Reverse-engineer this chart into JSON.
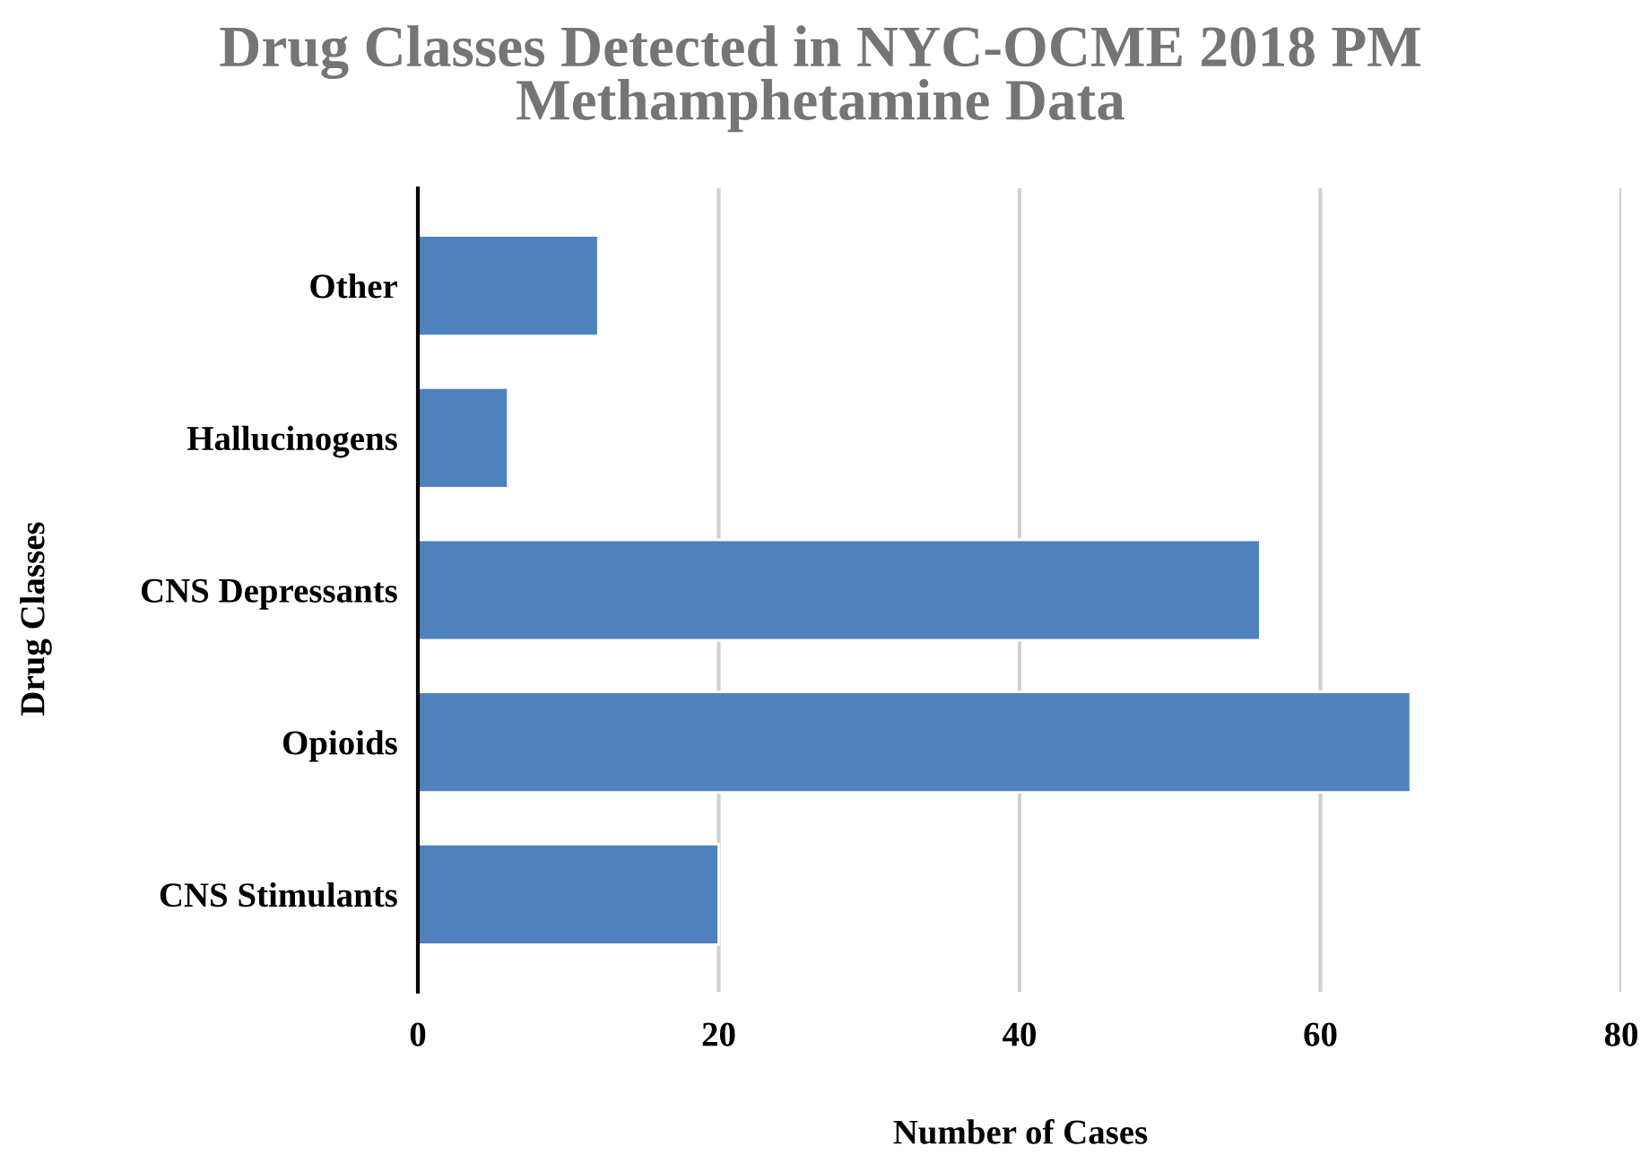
{
  "chart_data": {
    "type": "bar",
    "orientation": "horizontal",
    "title": "Drug Classes Detected in NYC-OCME 2018 PM\nMethamphetamine Data",
    "xlabel": "Number of Cases",
    "ylabel": "Drug Classes",
    "categories": [
      "Other",
      "Hallucinogens",
      "CNS Depressants",
      "Opioids",
      "CNS Stimulants"
    ],
    "values": [
      12,
      6,
      56,
      66,
      20
    ],
    "color": "#4f81bd",
    "xlim": [
      0,
      80
    ],
    "xticks": [
      0,
      20,
      40,
      60,
      80
    ],
    "grid": "x",
    "legend": false
  }
}
